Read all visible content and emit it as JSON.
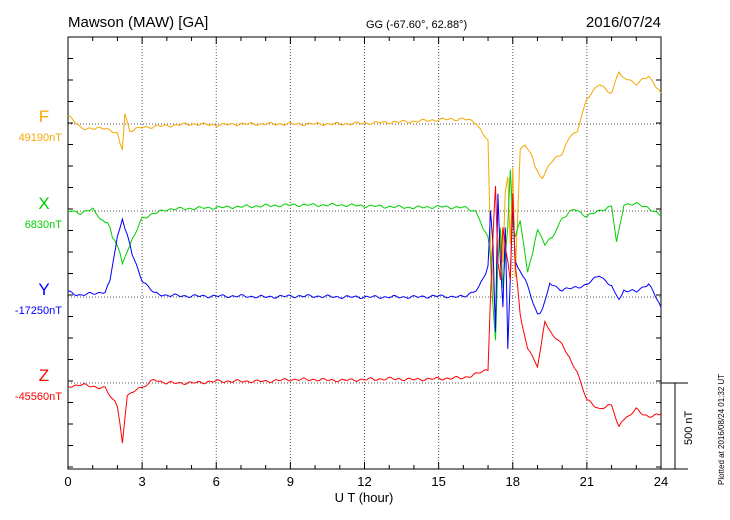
{
  "header": {
    "station": "Mawson (MAW)  [GA]",
    "coords": "GG (-67.60°,  62.88°)",
    "date": "2016/07/24"
  },
  "footer": {
    "plotted": "Plotted at 2016/08/24 01:32 UT"
  },
  "chart_data": {
    "type": "line",
    "xlabel": "U T (hour)",
    "xlim": [
      0,
      24
    ],
    "xticks": [
      0,
      3,
      6,
      9,
      12,
      15,
      18,
      21,
      24
    ],
    "scale_bar": {
      "label": "500 nT",
      "value_nT": 500
    },
    "series": [
      {
        "name": "F",
        "baseline_label": "49190nT",
        "baseline_nT": 49190,
        "color": "#f5a800",
        "points": [
          [
            0,
            48
          ],
          [
            0.5,
            -20
          ],
          [
            1,
            -30
          ],
          [
            1.5,
            -20
          ],
          [
            2.0,
            -60
          ],
          [
            2.2,
            -150
          ],
          [
            2.3,
            60
          ],
          [
            2.5,
            -40
          ],
          [
            3,
            -20
          ],
          [
            4,
            -10
          ],
          [
            5,
            0
          ],
          [
            6,
            -5
          ],
          [
            7,
            0
          ],
          [
            8,
            0
          ],
          [
            9,
            0
          ],
          [
            10,
            0
          ],
          [
            11,
            0
          ],
          [
            12,
            5
          ],
          [
            13,
            10
          ],
          [
            14,
            15
          ],
          [
            15,
            25
          ],
          [
            16,
            30
          ],
          [
            16.5,
            10
          ],
          [
            17,
            -100
          ],
          [
            17.1,
            -700
          ],
          [
            17.2,
            -900
          ],
          [
            17.3,
            -1150
          ],
          [
            17.4,
            -700
          ],
          [
            17.5,
            -600
          ],
          [
            17.6,
            -800
          ],
          [
            17.7,
            -400
          ],
          [
            17.8,
            -300
          ],
          [
            17.9,
            -700
          ],
          [
            18.0,
            -250
          ],
          [
            18.1,
            -900
          ],
          [
            18.3,
            -150
          ],
          [
            18.5,
            -120
          ],
          [
            18.8,
            -200
          ],
          [
            19.0,
            -280
          ],
          [
            19.2,
            -320
          ],
          [
            19.5,
            -230
          ],
          [
            20,
            -170
          ],
          [
            20.3,
            -80
          ],
          [
            20.6,
            -40
          ],
          [
            21,
            150
          ],
          [
            21.5,
            230
          ],
          [
            22,
            180
          ],
          [
            22.3,
            300
          ],
          [
            22.6,
            260
          ],
          [
            23,
            230
          ],
          [
            23.5,
            280
          ],
          [
            24,
            180
          ]
        ]
      },
      {
        "name": "X",
        "baseline_label": "6830nT",
        "baseline_nT": 6830,
        "color": "#00d000",
        "points": [
          [
            0,
            0
          ],
          [
            0.5,
            -10
          ],
          [
            1,
            10
          ],
          [
            1.3,
            -50
          ],
          [
            1.6,
            -60
          ],
          [
            1.8,
            -150
          ],
          [
            2,
            -200
          ],
          [
            2.2,
            -300
          ],
          [
            2.4,
            -240
          ],
          [
            2.6,
            -160
          ],
          [
            3,
            -40
          ],
          [
            4,
            10
          ],
          [
            5,
            15
          ],
          [
            6,
            20
          ],
          [
            7,
            25
          ],
          [
            8,
            30
          ],
          [
            9,
            35
          ],
          [
            10,
            35
          ],
          [
            11,
            35
          ],
          [
            12,
            30
          ],
          [
            13,
            25
          ],
          [
            14,
            20
          ],
          [
            15,
            25
          ],
          [
            16,
            20
          ],
          [
            16.5,
            0
          ],
          [
            16.8,
            -100
          ],
          [
            17,
            -150
          ],
          [
            17.1,
            -280
          ],
          [
            17.2,
            -550
          ],
          [
            17.3,
            -750
          ],
          [
            17.4,
            -300
          ],
          [
            17.5,
            -100
          ],
          [
            17.6,
            -450
          ],
          [
            17.7,
            -250
          ],
          [
            17.8,
            -100
          ],
          [
            17.9,
            250
          ],
          [
            18,
            -80
          ],
          [
            18.1,
            -150
          ],
          [
            18.3,
            -50
          ],
          [
            18.6,
            -350
          ],
          [
            18.8,
            -250
          ],
          [
            19,
            -100
          ],
          [
            19.3,
            -200
          ],
          [
            19.6,
            -150
          ],
          [
            20,
            -40
          ],
          [
            20.5,
            10
          ],
          [
            21,
            -30
          ],
          [
            21.5,
            0
          ],
          [
            22,
            30
          ],
          [
            22.2,
            -180
          ],
          [
            22.5,
            40
          ],
          [
            23,
            40
          ],
          [
            23.5,
            20
          ],
          [
            24,
            -30
          ]
        ]
      },
      {
        "name": "Y",
        "baseline_label": "-17250nT",
        "baseline_nT": -17250,
        "color": "#0000ff",
        "points": [
          [
            0,
            30
          ],
          [
            0.5,
            10
          ],
          [
            1,
            20
          ],
          [
            1.5,
            30
          ],
          [
            1.7,
            100
          ],
          [
            2,
            350
          ],
          [
            2.2,
            450
          ],
          [
            2.4,
            360
          ],
          [
            2.6,
            250
          ],
          [
            3,
            100
          ],
          [
            3.5,
            20
          ],
          [
            4,
            10
          ],
          [
            5,
            5
          ],
          [
            6,
            5
          ],
          [
            7,
            5
          ],
          [
            8,
            0
          ],
          [
            9,
            5
          ],
          [
            10,
            5
          ],
          [
            11,
            0
          ],
          [
            12,
            0
          ],
          [
            13,
            0
          ],
          [
            14,
            0
          ],
          [
            15,
            5
          ],
          [
            16,
            0
          ],
          [
            16.5,
            40
          ],
          [
            16.8,
            100
          ],
          [
            17,
            180
          ],
          [
            17.1,
            500
          ],
          [
            17.2,
            300
          ],
          [
            17.3,
            -200
          ],
          [
            17.4,
            600
          ],
          [
            17.5,
            200
          ],
          [
            17.6,
            -50
          ],
          [
            17.7,
            400
          ],
          [
            17.8,
            -300
          ],
          [
            17.9,
            100
          ],
          [
            18.0,
            550
          ],
          [
            18.1,
            200
          ],
          [
            18.3,
            150
          ],
          [
            18.5,
            100
          ],
          [
            19,
            -100
          ],
          [
            19.2,
            -80
          ],
          [
            19.5,
            80
          ],
          [
            20,
            40
          ],
          [
            21,
            70
          ],
          [
            21.5,
            130
          ],
          [
            22,
            60
          ],
          [
            22.3,
            -20
          ],
          [
            22.5,
            40
          ],
          [
            23,
            30
          ],
          [
            23.5,
            80
          ],
          [
            24,
            -60
          ]
        ]
      },
      {
        "name": "Z",
        "baseline_label": "-45560nT",
        "baseline_nT": -45560,
        "color": "#ff0000",
        "points": [
          [
            0,
            -20
          ],
          [
            0.5,
            -10
          ],
          [
            1,
            -20
          ],
          [
            1.5,
            -30
          ],
          [
            1.8,
            -90
          ],
          [
            2,
            -130
          ],
          [
            2.2,
            -350
          ],
          [
            2.4,
            -70
          ],
          [
            2.7,
            -40
          ],
          [
            3,
            -30
          ],
          [
            3.5,
            20
          ],
          [
            4,
            0
          ],
          [
            5,
            0
          ],
          [
            6,
            10
          ],
          [
            7,
            10
          ],
          [
            8,
            10
          ],
          [
            9,
            20
          ],
          [
            10,
            20
          ],
          [
            11,
            15
          ],
          [
            12,
            20
          ],
          [
            13,
            25
          ],
          [
            14,
            20
          ],
          [
            15,
            25
          ],
          [
            16,
            30
          ],
          [
            16.5,
            50
          ],
          [
            17,
            80
          ],
          [
            17.1,
            500
          ],
          [
            17.2,
            850
          ],
          [
            17.3,
            1150
          ],
          [
            17.4,
            700
          ],
          [
            17.5,
            600
          ],
          [
            17.6,
            900
          ],
          [
            17.7,
            800
          ],
          [
            17.8,
            700
          ],
          [
            17.9,
            600
          ],
          [
            18,
            1100
          ],
          [
            18.1,
            700
          ],
          [
            18.3,
            400
          ],
          [
            18.6,
            200
          ],
          [
            19,
            100
          ],
          [
            19.3,
            350
          ],
          [
            19.6,
            280
          ],
          [
            20,
            220
          ],
          [
            20.3,
            150
          ],
          [
            20.6,
            60
          ],
          [
            21,
            -100
          ],
          [
            21.5,
            -150
          ],
          [
            22,
            -130
          ],
          [
            22.3,
            -250
          ],
          [
            22.6,
            -200
          ],
          [
            23,
            -150
          ],
          [
            23.5,
            -200
          ],
          [
            24,
            -180
          ]
        ]
      }
    ]
  }
}
